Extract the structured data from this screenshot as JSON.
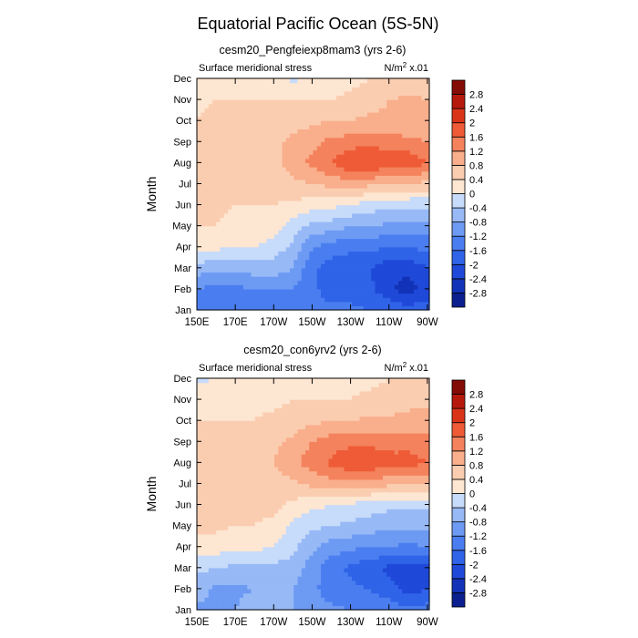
{
  "figure": {
    "title": "Equatorial Pacific Ocean (5S-5N)"
  },
  "chart_data": [
    {
      "type": "contour",
      "title": "cesm20_Pengfeiexp8mam3 (yrs 2-6)",
      "left_label": "Surface meridional stress",
      "units": {
        "base": "N/m",
        "sup": "2",
        "suffix": " x.01"
      },
      "ylabel": "Month",
      "xlabel": "",
      "x_ticks": [
        "150E",
        "170E",
        "170W",
        "150W",
        "130W",
        "110W",
        "90W"
      ],
      "x_tick_lon": [
        150,
        170,
        190,
        210,
        230,
        250,
        270
      ],
      "xlim": [
        150,
        271
      ],
      "y_ticks": [
        "Jan",
        "Feb",
        "Mar",
        "Apr",
        "May",
        "Jun",
        "Jul",
        "Aug",
        "Sep",
        "Oct",
        "Nov",
        "Dec"
      ],
      "ylim": [
        1,
        12
      ],
      "lon": [
        150,
        160,
        170,
        180,
        190,
        200,
        210,
        220,
        230,
        240,
        250,
        260,
        270
      ],
      "z_approx": [
        [
          -1.5,
          -1.6,
          -1.4,
          -1.3,
          -1.4,
          -1.4,
          -1.5,
          -1.5,
          -1.5,
          -1.6,
          -1.7,
          -1.8,
          -1.8
        ],
        [
          -1.2,
          -1.4,
          -1.3,
          -1.2,
          -1.2,
          -1.2,
          -1.5,
          -1.8,
          -1.8,
          -1.9,
          -2.3,
          -2.6,
          -2.2
        ],
        [
          -0.6,
          -0.7,
          -0.7,
          -0.6,
          -0.6,
          -0.8,
          -1.5,
          -1.8,
          -1.9,
          -2.0,
          -2.3,
          -2.3,
          -2.0
        ],
        [
          0.2,
          0.1,
          0.0,
          0.0,
          -0.2,
          -0.5,
          -1.2,
          -1.4,
          -1.5,
          -1.5,
          -1.6,
          -1.6,
          -1.5
        ],
        [
          0.4,
          0.4,
          0.3,
          0.3,
          0.2,
          -0.2,
          -0.5,
          -0.6,
          -0.8,
          -0.8,
          -0.9,
          -0.9,
          -0.9
        ],
        [
          0.6,
          0.5,
          0.4,
          0.4,
          0.4,
          0.3,
          0.2,
          0.1,
          0.0,
          -0.2,
          -0.3,
          -0.3,
          -0.3
        ],
        [
          0.7,
          0.6,
          0.6,
          0.5,
          0.6,
          0.7,
          0.8,
          0.9,
          1.0,
          0.9,
          0.8,
          0.7,
          0.7
        ],
        [
          0.8,
          0.7,
          0.7,
          0.7,
          0.7,
          1.0,
          1.3,
          1.6,
          2.0,
          2.0,
          1.8,
          1.9,
          1.6
        ],
        [
          0.5,
          0.6,
          0.6,
          0.6,
          0.7,
          0.9,
          1.1,
          1.3,
          1.4,
          1.5,
          1.4,
          1.3,
          1.2
        ],
        [
          0.4,
          0.5,
          0.5,
          0.5,
          0.6,
          0.6,
          0.7,
          0.8,
          0.8,
          0.9,
          0.9,
          0.9,
          0.9
        ],
        [
          0.3,
          0.4,
          0.4,
          0.4,
          0.4,
          0.4,
          0.4,
          0.4,
          0.5,
          0.6,
          0.8,
          0.9,
          0.8
        ],
        [
          0.1,
          0.2,
          0.2,
          0.2,
          0.2,
          -0.1,
          0.1,
          0.2,
          0.3,
          0.4,
          0.4,
          0.5,
          0.5
        ]
      ]
    },
    {
      "type": "contour",
      "title": "cesm20_con6yrv2 (yrs 2-6)",
      "left_label": "Surface meridional stress",
      "units": {
        "base": "N/m",
        "sup": "2",
        "suffix": " x.01"
      },
      "ylabel": "Month",
      "xlabel": "",
      "x_ticks": [
        "150E",
        "170E",
        "170W",
        "150W",
        "130W",
        "110W",
        "90W"
      ],
      "x_tick_lon": [
        150,
        170,
        190,
        210,
        230,
        250,
        270
      ],
      "xlim": [
        150,
        271
      ],
      "y_ticks": [
        "Jan",
        "Feb",
        "Mar",
        "Apr",
        "May",
        "Jun",
        "Jul",
        "Aug",
        "Sep",
        "Oct",
        "Nov",
        "Dec"
      ],
      "ylim": [
        1,
        12
      ],
      "lon": [
        150,
        160,
        170,
        180,
        190,
        200,
        210,
        220,
        230,
        240,
        250,
        260,
        270
      ],
      "z_approx": [
        [
          -0.9,
          -0.9,
          -0.8,
          -0.5,
          -0.4,
          -0.8,
          -1.0,
          -1.1,
          -1.2,
          -1.3,
          -1.4,
          -1.5,
          -1.4
        ],
        [
          -0.6,
          -0.9,
          -0.9,
          -0.8,
          -0.7,
          -0.8,
          -1.1,
          -1.4,
          -1.5,
          -1.6,
          -1.8,
          -2.2,
          -2.0
        ],
        [
          -0.3,
          -0.4,
          -0.5,
          -0.5,
          -0.5,
          -0.6,
          -1.0,
          -1.5,
          -1.7,
          -1.9,
          -2.1,
          -2.3,
          -2.2
        ],
        [
          0.3,
          0.2,
          0.1,
          0.1,
          0.0,
          -0.3,
          -0.7,
          -1.0,
          -1.1,
          -1.2,
          -1.2,
          -1.3,
          -1.2
        ],
        [
          0.5,
          0.5,
          0.4,
          0.4,
          0.3,
          -0.1,
          -0.3,
          -0.4,
          -0.5,
          -0.6,
          -0.7,
          -0.7,
          -0.7
        ],
        [
          0.6,
          0.6,
          0.5,
          0.5,
          0.5,
          0.3,
          0.1,
          0.0,
          -0.1,
          -0.2,
          -0.3,
          -0.3,
          -0.3
        ],
        [
          0.7,
          0.7,
          0.6,
          0.6,
          0.6,
          0.7,
          0.9,
          1.0,
          1.1,
          1.0,
          0.9,
          0.8,
          0.8
        ],
        [
          0.7,
          0.7,
          0.7,
          0.7,
          0.8,
          1.1,
          1.4,
          1.7,
          1.9,
          1.9,
          1.8,
          1.8,
          1.6
        ],
        [
          0.6,
          0.6,
          0.6,
          0.6,
          0.7,
          0.9,
          1.2,
          1.4,
          1.5,
          1.5,
          1.4,
          1.4,
          1.3
        ],
        [
          0.4,
          0.4,
          0.4,
          0.4,
          0.5,
          0.6,
          0.7,
          0.8,
          0.8,
          0.9,
          0.9,
          1.0,
          1.0
        ],
        [
          0.2,
          0.3,
          0.3,
          0.3,
          0.3,
          0.4,
          0.4,
          0.4,
          0.4,
          0.5,
          0.5,
          0.6,
          0.7
        ],
        [
          -0.1,
          0.0,
          0.1,
          0.1,
          0.1,
          0.2,
          0.2,
          0.3,
          0.3,
          0.3,
          0.4,
          0.4,
          0.5
        ]
      ]
    }
  ],
  "colorbar": {
    "levels": [
      -2.8,
      -2.4,
      -2.0,
      -1.6,
      -1.2,
      -0.8,
      -0.4,
      0,
      0.4,
      0.8,
      1.2,
      1.6,
      2.0,
      2.4,
      2.8
    ],
    "labels": [
      "-2.8",
      "-2.4",
      "-2",
      "-1.6",
      "-1.2",
      "-0.8",
      "-0.4",
      "0",
      "0.4",
      "0.8",
      "1.2",
      "1.6",
      "2",
      "2.4",
      "2.8"
    ],
    "colors": [
      "#0c1f8e",
      "#1233b8",
      "#1f49d8",
      "#2f63e8",
      "#4a7ef0",
      "#6d9af3",
      "#97b9f6",
      "#c7dbfa",
      "#fde6d2",
      "#fbcdb0",
      "#f9ae8c",
      "#f4825c",
      "#ee5b36",
      "#d93418",
      "#b51a0c",
      "#840c06"
    ]
  }
}
